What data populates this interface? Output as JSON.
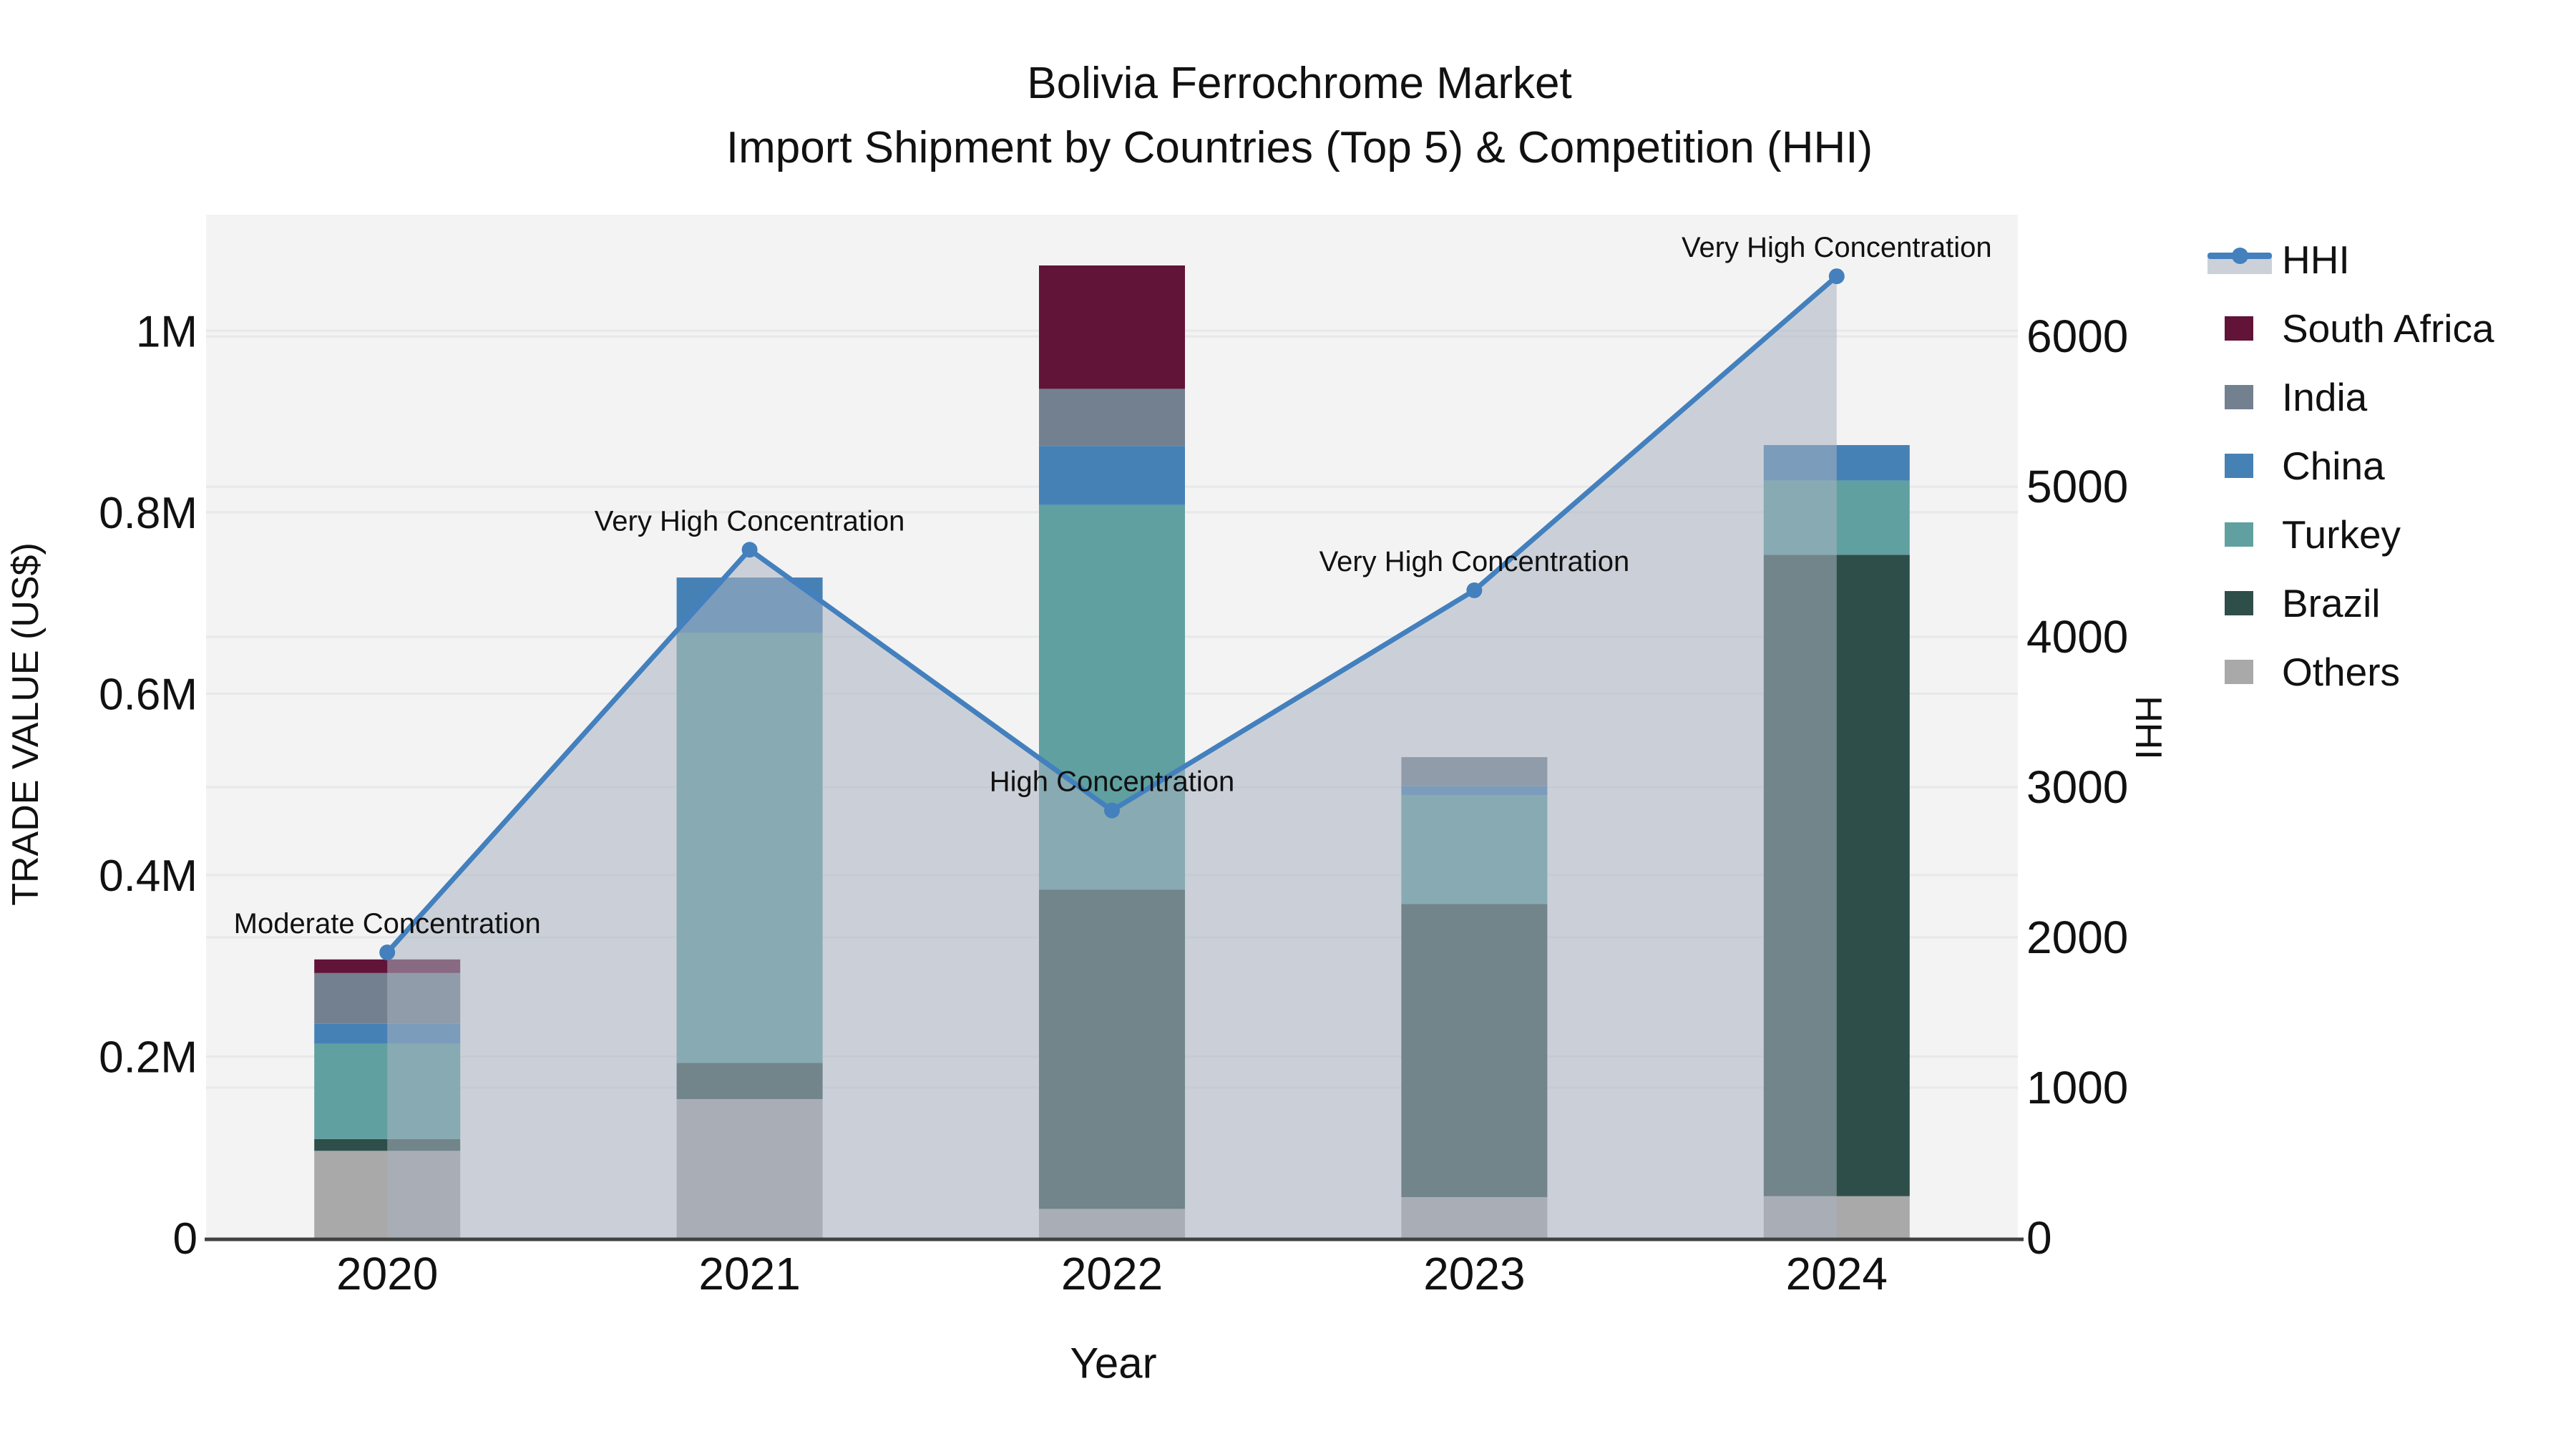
{
  "title": {
    "line1": "Bolivia Ferrochrome Market",
    "line2": "Import Shipment by Countries (Top 5) & Competition (HHI)"
  },
  "axes": {
    "left": {
      "title": "TRADE VALUE (US$)",
      "max": 1128000,
      "ticks": [
        {
          "label": "0",
          "value": 0
        },
        {
          "label": "0.2M",
          "value": 200000
        },
        {
          "label": "0.4M",
          "value": 400000
        },
        {
          "label": "0.6M",
          "value": 600000
        },
        {
          "label": "0.8M",
          "value": 800000
        },
        {
          "label": "1M",
          "value": 1000000
        }
      ]
    },
    "right": {
      "title": "HHI",
      "max": 6810,
      "ticks": [
        {
          "label": "0",
          "value": 0
        },
        {
          "label": "1000",
          "value": 1000
        },
        {
          "label": "2000",
          "value": 2000
        },
        {
          "label": "3000",
          "value": 3000
        },
        {
          "label": "4000",
          "value": 4000
        },
        {
          "label": "5000",
          "value": 5000
        },
        {
          "label": "6000",
          "value": 6000
        }
      ]
    },
    "x": {
      "title": "Year"
    }
  },
  "legend": {
    "items": [
      {
        "label": "HHI",
        "type": "line",
        "color": "#4380bd"
      },
      {
        "label": "South Africa",
        "type": "bar",
        "color": "#611338"
      },
      {
        "label": "India",
        "type": "bar",
        "color": "#738090"
      },
      {
        "label": "China",
        "type": "bar",
        "color": "#4681b6"
      },
      {
        "label": "Turkey",
        "type": "bar",
        "color": "#60a0a0"
      },
      {
        "label": "Brazil",
        "type": "bar",
        "color": "#2e4e4a"
      },
      {
        "label": "Others",
        "type": "bar",
        "color": "#a9a9a9"
      }
    ]
  },
  "chart_data": {
    "type": "bar+line",
    "title": "Bolivia Ferrochrome Market Import Shipment by Countries (Top 5) & Competition (HHI)",
    "xlabel": "Year",
    "ylabel_left": "TRADE VALUE (US$)",
    "ylabel_right": "HHI",
    "ylim_left": [
      0,
      1128000
    ],
    "ylim_right": [
      0,
      6810
    ],
    "grid": true,
    "legend_position": "right",
    "categories": [
      "2020",
      "2021",
      "2022",
      "2023",
      "2024"
    ],
    "stack_order_bottom_to_top": [
      "Others",
      "Brazil",
      "Turkey",
      "China",
      "India",
      "South Africa"
    ],
    "series": [
      {
        "name": "South Africa",
        "color": "#611338",
        "values": [
          15000,
          0,
          136000,
          0,
          0
        ]
      },
      {
        "name": "India",
        "color": "#738090",
        "values": [
          56000,
          0,
          63000,
          32000,
          0
        ]
      },
      {
        "name": "China",
        "color": "#4681b6",
        "values": [
          22000,
          61000,
          65000,
          10000,
          39000
        ]
      },
      {
        "name": "Turkey",
        "color": "#60a0a0",
        "values": [
          105000,
          474000,
          424000,
          120000,
          82000
        ]
      },
      {
        "name": "Brazil",
        "color": "#2e4e4a",
        "values": [
          13000,
          40000,
          352000,
          323000,
          707000
        ]
      },
      {
        "name": "Others",
        "color": "#a9a9a9",
        "values": [
          96000,
          153000,
          32000,
          45000,
          46000
        ]
      }
    ],
    "stack_totals": [
      307000,
      728000,
      1072000,
      530000,
      874000
    ],
    "hhi": {
      "name": "HHI",
      "color": "#4380bd",
      "area_fill": "rgba(170,179,193,0.55)",
      "values": [
        1900,
        4580,
        2845,
        4310,
        6400
      ],
      "annotations": [
        "Moderate Concentration",
        "Very High Concentration",
        "High Concentration",
        "Very High Concentration",
        "Very High Concentration"
      ]
    },
    "colors": {
      "plot_bg": "#f3f3f3",
      "gridline": "#e7e8e9",
      "axis_line": "#424242",
      "text": "#111111"
    }
  }
}
